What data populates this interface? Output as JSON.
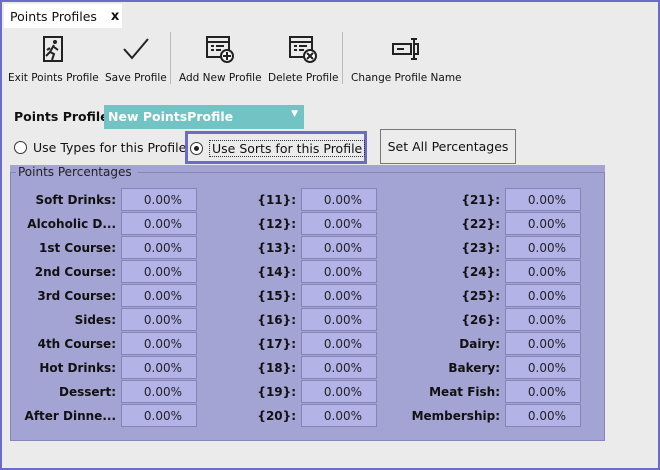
{
  "tab": {
    "title": "Points Profiles",
    "close": "x"
  },
  "toolbar": [
    {
      "label": "Exit Points Profile",
      "icon": "exit-icon"
    },
    {
      "label": "Save Profile",
      "icon": "checkmark-icon"
    },
    {
      "label": "Add New Profile",
      "icon": "add-profile-icon"
    },
    {
      "label": "Delete Profile",
      "icon": "delete-profile-icon"
    },
    {
      "label": "Change Profile Name",
      "icon": "rename-icon"
    }
  ],
  "profile": {
    "label": "Points Profile:",
    "value": "New PointsProfile"
  },
  "options": {
    "types": "Use Types for this Profile",
    "sorts": "Use Sorts for this Profile",
    "selected": "sorts",
    "set_all": "Set All Percentages"
  },
  "group": {
    "title": "Points Percentages",
    "columns": [
      [
        {
          "label": "Soft Drinks:",
          "value": "0.00%"
        },
        {
          "label": "Alcoholic D...",
          "value": "0.00%"
        },
        {
          "label": "1st Course:",
          "value": "0.00%"
        },
        {
          "label": "2nd Course:",
          "value": "0.00%"
        },
        {
          "label": "3rd Course:",
          "value": "0.00%"
        },
        {
          "label": "Sides:",
          "value": "0.00%"
        },
        {
          "label": "4th Course:",
          "value": "0.00%"
        },
        {
          "label": "Hot Drinks:",
          "value": "0.00%"
        },
        {
          "label": "Dessert:",
          "value": "0.00%"
        },
        {
          "label": "After Dinne...",
          "value": "0.00%"
        }
      ],
      [
        {
          "label": "{11}:",
          "value": "0.00%"
        },
        {
          "label": "{12}:",
          "value": "0.00%"
        },
        {
          "label": "{13}:",
          "value": "0.00%"
        },
        {
          "label": "{14}:",
          "value": "0.00%"
        },
        {
          "label": "{15}:",
          "value": "0.00%"
        },
        {
          "label": "{16}:",
          "value": "0.00%"
        },
        {
          "label": "{17}:",
          "value": "0.00%"
        },
        {
          "label": "{18}:",
          "value": "0.00%"
        },
        {
          "label": "{19}:",
          "value": "0.00%"
        },
        {
          "label": "{20}:",
          "value": "0.00%"
        }
      ],
      [
        {
          "label": "{21}:",
          "value": "0.00%"
        },
        {
          "label": "{22}:",
          "value": "0.00%"
        },
        {
          "label": "{23}:",
          "value": "0.00%"
        },
        {
          "label": "{24}:",
          "value": "0.00%"
        },
        {
          "label": "{25}:",
          "value": "0.00%"
        },
        {
          "label": "{26}:",
          "value": "0.00%"
        },
        {
          "label": "Dairy:",
          "value": "0.00%"
        },
        {
          "label": "Bakery:",
          "value": "0.00%"
        },
        {
          "label": "Meat  Fish:",
          "value": "0.00%"
        },
        {
          "label": "Membership:",
          "value": "0.00%"
        }
      ]
    ]
  },
  "colors": {
    "accent": "#6c6cc8",
    "combo": "#72c4c4",
    "group": "#a3a3d4",
    "field": "#b3b3e8"
  }
}
